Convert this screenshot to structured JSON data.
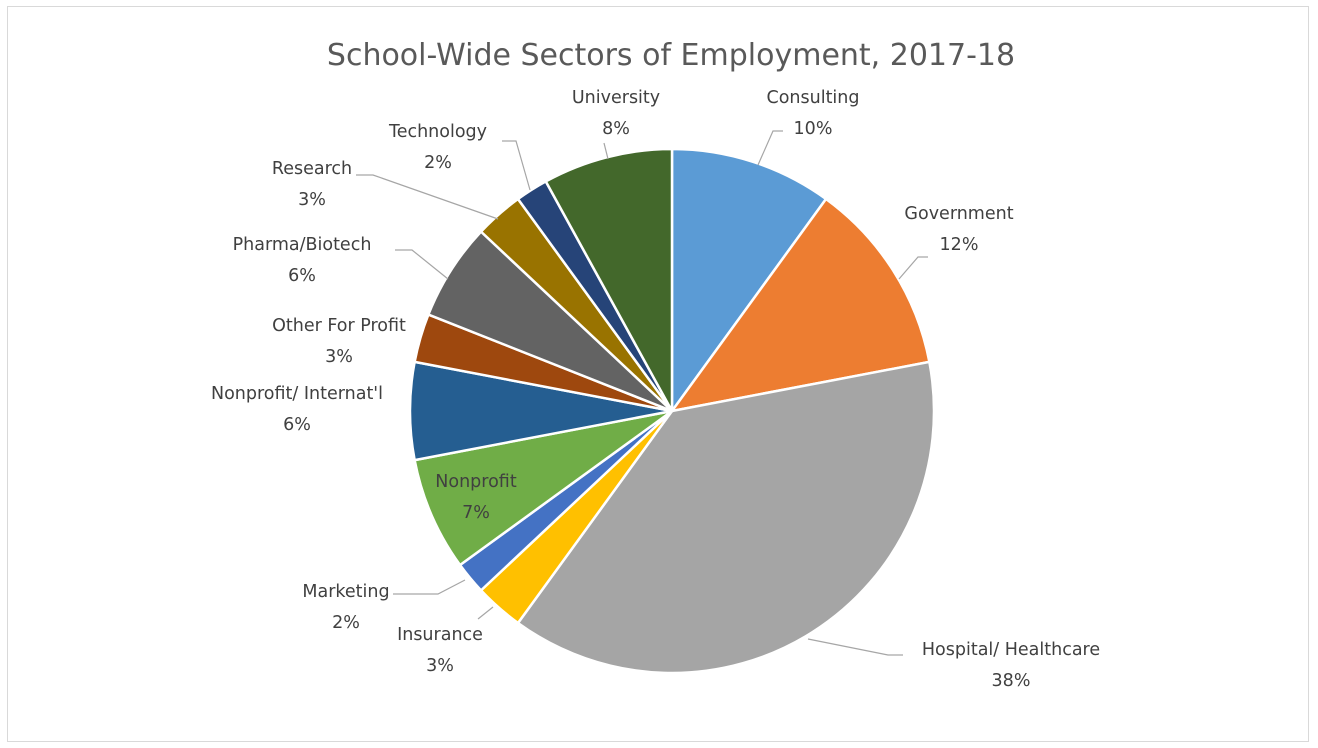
{
  "chart_data": {
    "type": "pie",
    "title": "School-Wide Sectors of Employment, 2017-18",
    "legend": "none",
    "data_labels": "category and percentage",
    "slices": [
      {
        "label": "Consulting",
        "value": 10,
        "value_label": "10%",
        "color": "#5B9BD5"
      },
      {
        "label": "Government",
        "value": 12,
        "value_label": "12%",
        "color": "#ED7D31"
      },
      {
        "label": "Hospital/ Healthcare",
        "value": 38,
        "value_label": "38%",
        "color": "#A5A5A5"
      },
      {
        "label": "Insurance",
        "value": 3,
        "value_label": "3%",
        "color": "#FFC000"
      },
      {
        "label": "Marketing",
        "value": 2,
        "value_label": "2%",
        "color": "#4472C4"
      },
      {
        "label": "Nonprofit",
        "value": 7,
        "value_label": "7%",
        "color": "#70AD47"
      },
      {
        "label": "Nonprofit/ Internat'l",
        "value": 6,
        "value_label": "6%",
        "color": "#255E91"
      },
      {
        "label": "Other For Profit",
        "value": 3,
        "value_label": "3%",
        "color": "#9E480E"
      },
      {
        "label": "Pharma/Biotech",
        "value": 6,
        "value_label": "6%",
        "color": "#636363"
      },
      {
        "label": "Research",
        "value": 3,
        "value_label": "3%",
        "color": "#997300"
      },
      {
        "label": "Technology",
        "value": 2,
        "value_label": "2%",
        "color": "#264478"
      },
      {
        "label": "University",
        "value": 8,
        "value_label": "8%",
        "color": "#43682B"
      }
    ]
  }
}
